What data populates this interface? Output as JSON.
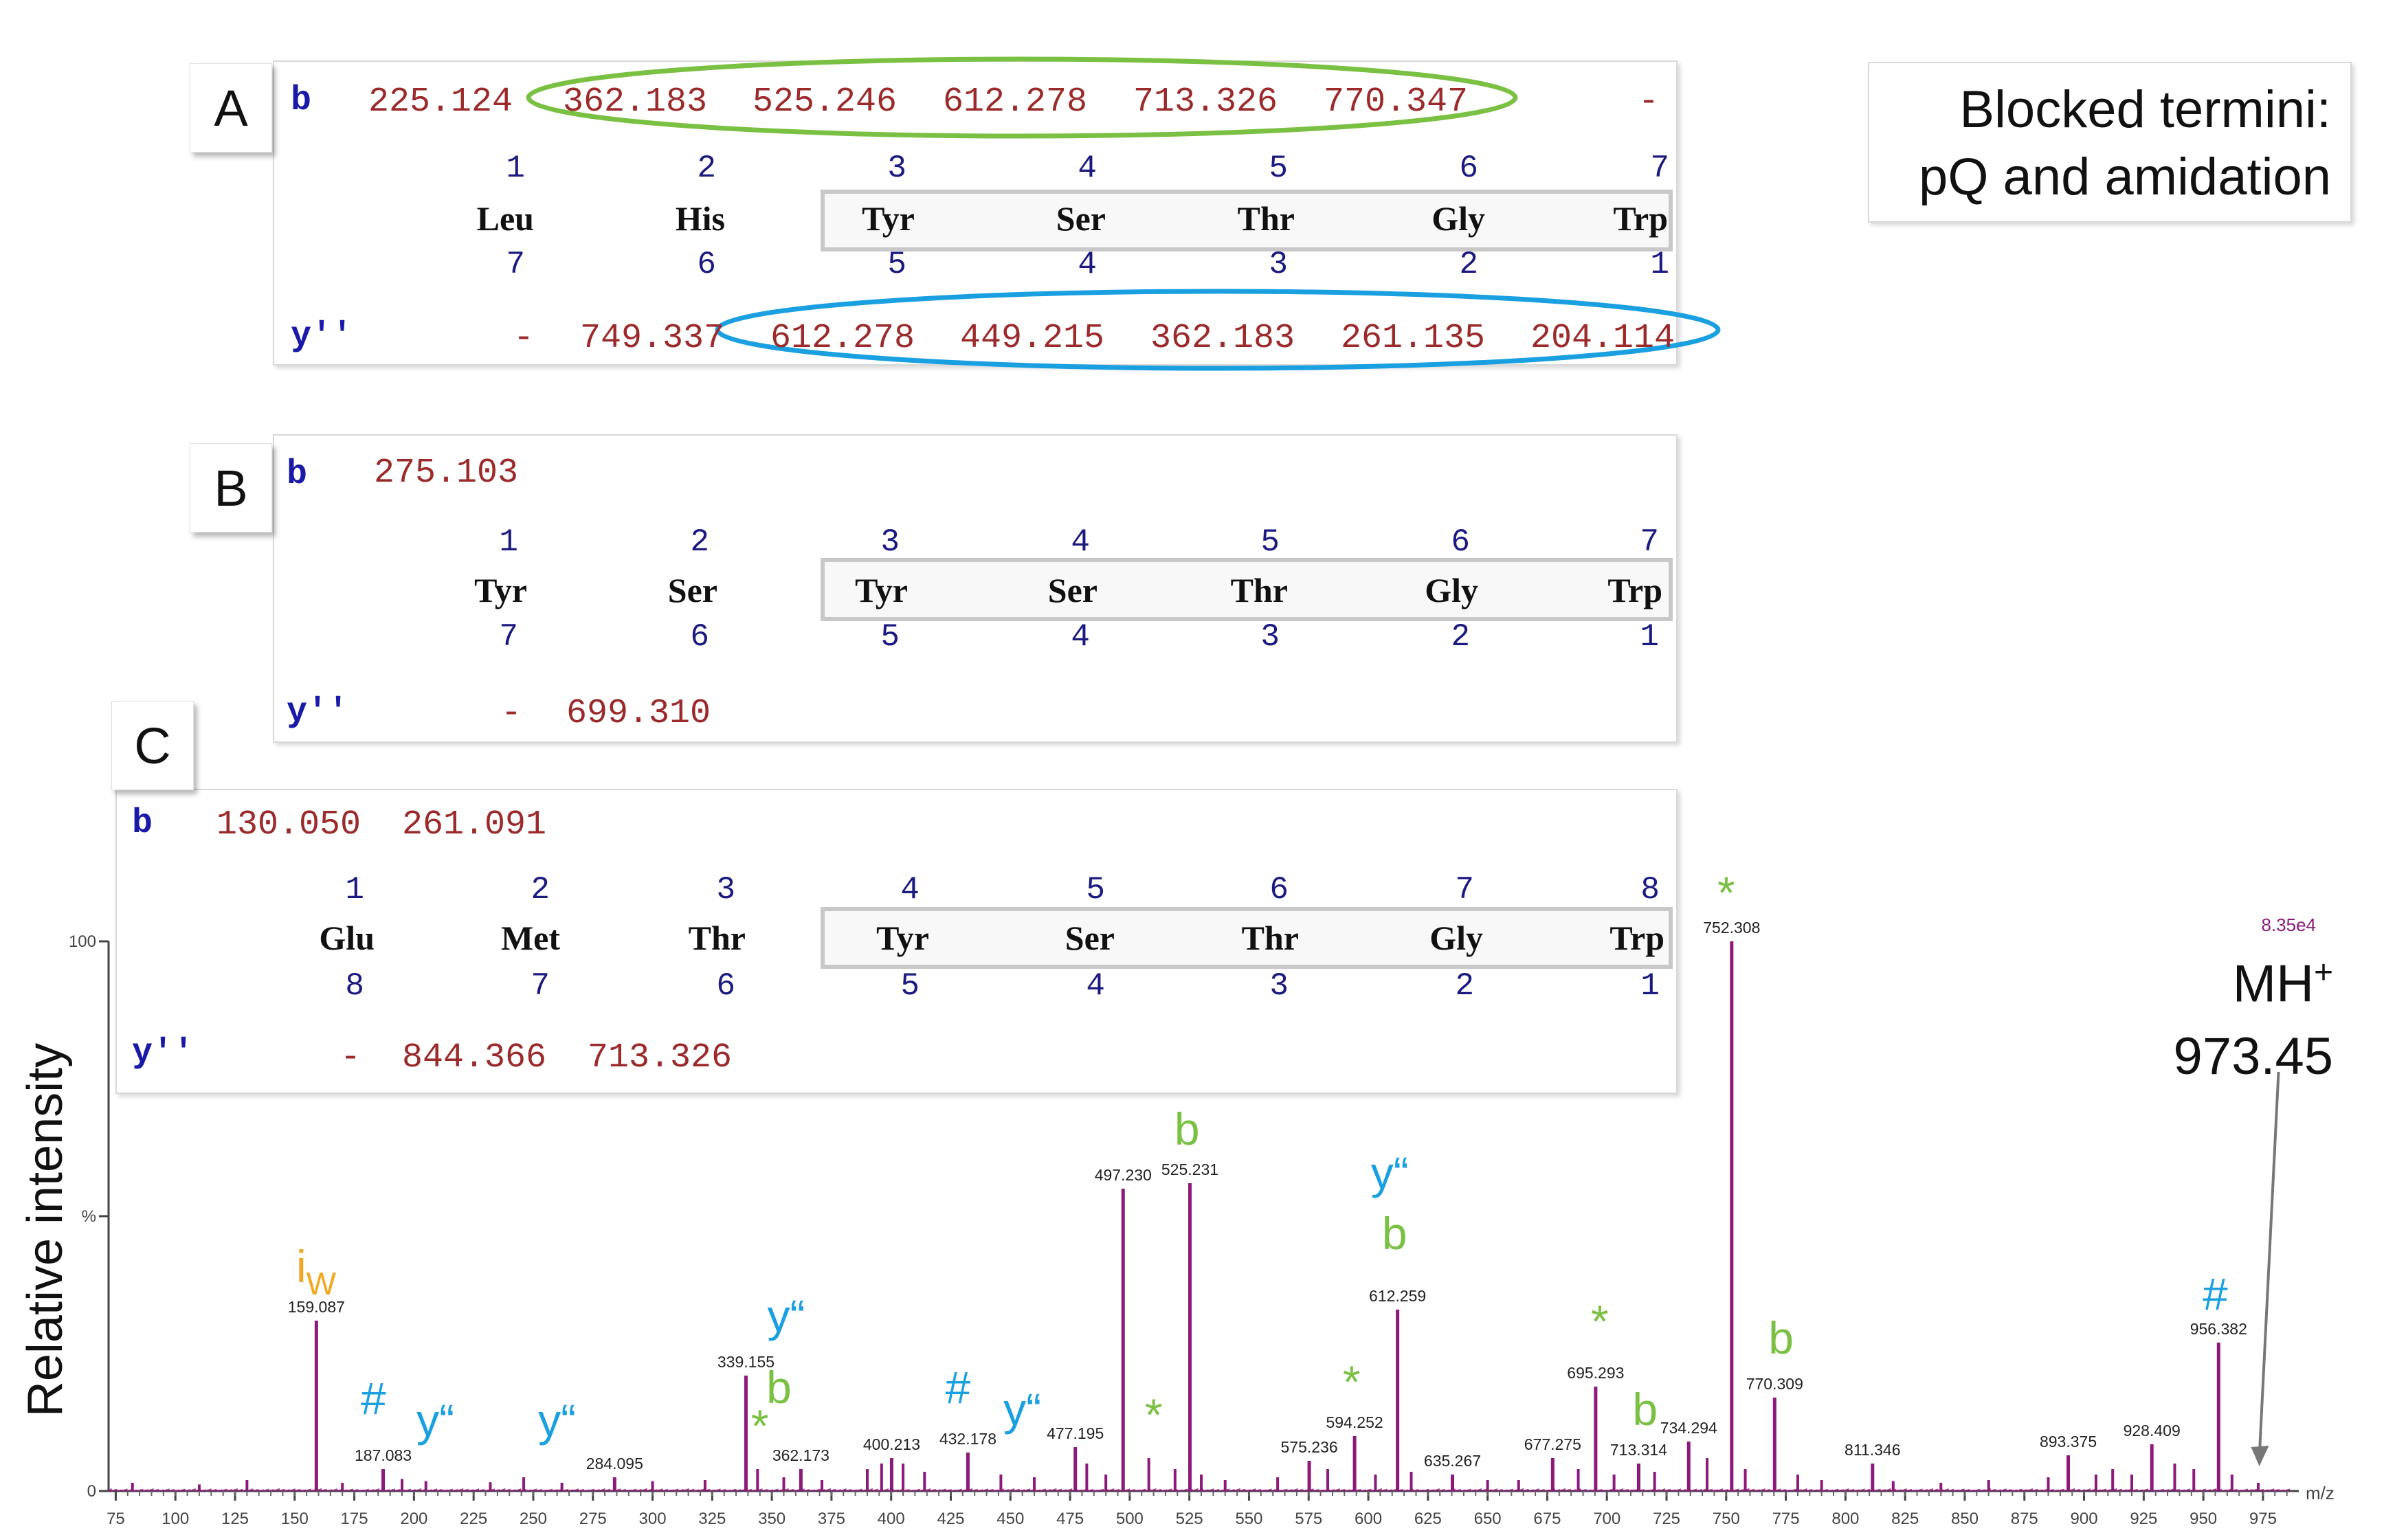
{
  "note": {
    "line1": "Blocked termini:",
    "line2": "pQ and amidation"
  },
  "panels": {
    "A": {
      "label": "A",
      "b_label": "b",
      "y_label": "y''",
      "b_values": [
        "225.124",
        "362.183",
        "525.246",
        "612.278",
        "713.326",
        "770.347",
        "-"
      ],
      "top_numbers": [
        "1",
        "2",
        "3",
        "4",
        "5",
        "6",
        "7"
      ],
      "residues": [
        "Leu",
        "His",
        "Tyr",
        "Ser",
        "Thr",
        "Gly",
        "Trp"
      ],
      "bottom_numbers": [
        "7",
        "6",
        "5",
        "4",
        "3",
        "2",
        "1"
      ],
      "y_values": [
        "-",
        "749.337",
        "612.278",
        "449.215",
        "362.183",
        "261.135",
        "204.114"
      ],
      "b_oval_color": "#7ac143",
      "y_oval_color": "#1aa0e0"
    },
    "B": {
      "label": "B",
      "b_label": "b",
      "y_label": "y''",
      "b_values": [
        "275.103"
      ],
      "top_numbers": [
        "1",
        "2",
        "3",
        "4",
        "5",
        "6",
        "7"
      ],
      "residues": [
        "Tyr",
        "Ser",
        "Tyr",
        "Ser",
        "Thr",
        "Gly",
        "Trp"
      ],
      "bottom_numbers": [
        "7",
        "6",
        "5",
        "4",
        "3",
        "2",
        "1"
      ],
      "y_values": [
        "-",
        "699.310"
      ]
    },
    "C": {
      "label": "C",
      "b_label": "b",
      "y_label": "y''",
      "b_values": [
        "130.050",
        "261.091"
      ],
      "top_numbers": [
        "1",
        "2",
        "3",
        "4",
        "5",
        "6",
        "7",
        "8"
      ],
      "residues": [
        "Glu",
        "Met",
        "Thr",
        "Tyr",
        "Ser",
        "Thr",
        "Gly",
        "Trp"
      ],
      "bottom_numbers": [
        "8",
        "7",
        "6",
        "5",
        "4",
        "3",
        "2",
        "1"
      ],
      "y_values": [
        "-",
        "844.366",
        "713.326"
      ]
    }
  },
  "chart_data": {
    "type": "line",
    "title": "",
    "xlabel": "m/z",
    "ylabel": "Relative intensity",
    "xlim": [
      65,
      990
    ],
    "ylim": [
      0,
      100
    ],
    "x_ticks": [
      75,
      100,
      125,
      150,
      175,
      200,
      225,
      250,
      275,
      300,
      325,
      350,
      375,
      400,
      425,
      450,
      475,
      500,
      525,
      550,
      575,
      600,
      625,
      650,
      675,
      700,
      725,
      750,
      775,
      800,
      825,
      850,
      875,
      900,
      925,
      950,
      975
    ],
    "y_ticks": [
      0,
      50,
      100
    ],
    "y_tick_labels": [
      "0",
      "%",
      "100"
    ],
    "max_intensity": "8.35e4",
    "spectrum_color": "#8b1a7a",
    "peaks": [
      {
        "mz": 159.087,
        "intensity": 31,
        "label": "159.087"
      },
      {
        "mz": 187.083,
        "intensity": 4,
        "label": "187.083"
      },
      {
        "mz": 284.095,
        "intensity": 2.5,
        "label": "284.095"
      },
      {
        "mz": 339.155,
        "intensity": 21,
        "label": "339.155"
      },
      {
        "mz": 362.173,
        "intensity": 4,
        "label": "362.173"
      },
      {
        "mz": 400.213,
        "intensity": 6,
        "label": "400.213"
      },
      {
        "mz": 432.178,
        "intensity": 7,
        "label": "432.178"
      },
      {
        "mz": 477.195,
        "intensity": 8,
        "label": "477.195"
      },
      {
        "mz": 497.23,
        "intensity": 55,
        "label": "497.230"
      },
      {
        "mz": 525.231,
        "intensity": 56,
        "label": "525.231"
      },
      {
        "mz": 575.236,
        "intensity": 5.5,
        "label": "575.236"
      },
      {
        "mz": 594.252,
        "intensity": 10,
        "label": "594.252"
      },
      {
        "mz": 612.259,
        "intensity": 33,
        "label": "612.259"
      },
      {
        "mz": 635.267,
        "intensity": 3,
        "label": "635.267"
      },
      {
        "mz": 677.275,
        "intensity": 6,
        "label": "677.275"
      },
      {
        "mz": 695.293,
        "intensity": 19,
        "label": "695.293"
      },
      {
        "mz": 713.314,
        "intensity": 5,
        "label": "713.314"
      },
      {
        "mz": 734.294,
        "intensity": 9,
        "label": "734.294"
      },
      {
        "mz": 752.308,
        "intensity": 100,
        "label": "752.308"
      },
      {
        "mz": 770.309,
        "intensity": 17,
        "label": "770.309"
      },
      {
        "mz": 811.346,
        "intensity": 5,
        "label": "811.346"
      },
      {
        "mz": 893.375,
        "intensity": 6.5,
        "label": "893.375"
      },
      {
        "mz": 928.409,
        "intensity": 8.5,
        "label": "928.409"
      },
      {
        "mz": 956.382,
        "intensity": 27,
        "label": "956.382"
      }
    ],
    "minor_peaks": [
      {
        "mz": 82,
        "intensity": 1.5
      },
      {
        "mz": 110,
        "intensity": 1.2
      },
      {
        "mz": 130,
        "intensity": 2
      },
      {
        "mz": 170,
        "intensity": 1.5
      },
      {
        "mz": 195,
        "intensity": 2.2
      },
      {
        "mz": 205,
        "intensity": 1.8
      },
      {
        "mz": 232,
        "intensity": 1.6
      },
      {
        "mz": 246,
        "intensity": 2.5
      },
      {
        "mz": 262,
        "intensity": 1.5
      },
      {
        "mz": 300,
        "intensity": 1.8
      },
      {
        "mz": 322,
        "intensity": 2
      },
      {
        "mz": 344,
        "intensity": 4
      },
      {
        "mz": 355,
        "intensity": 2.5
      },
      {
        "mz": 371,
        "intensity": 2
      },
      {
        "mz": 390,
        "intensity": 4
      },
      {
        "mz": 396,
        "intensity": 5
      },
      {
        "mz": 405,
        "intensity": 5
      },
      {
        "mz": 414,
        "intensity": 3.5
      },
      {
        "mz": 446,
        "intensity": 3
      },
      {
        "mz": 460,
        "intensity": 2.5
      },
      {
        "mz": 482,
        "intensity": 5
      },
      {
        "mz": 490,
        "intensity": 3
      },
      {
        "mz": 508,
        "intensity": 6
      },
      {
        "mz": 519,
        "intensity": 4
      },
      {
        "mz": 530,
        "intensity": 3
      },
      {
        "mz": 540,
        "intensity": 2
      },
      {
        "mz": 562,
        "intensity": 2.5
      },
      {
        "mz": 583,
        "intensity": 4
      },
      {
        "mz": 603,
        "intensity": 3
      },
      {
        "mz": 618,
        "intensity": 3.5
      },
      {
        "mz": 650,
        "intensity": 2
      },
      {
        "mz": 663,
        "intensity": 2
      },
      {
        "mz": 688,
        "intensity": 4
      },
      {
        "mz": 703,
        "intensity": 3
      },
      {
        "mz": 720,
        "intensity": 3.5
      },
      {
        "mz": 742,
        "intensity": 6
      },
      {
        "mz": 758,
        "intensity": 4
      },
      {
        "mz": 780,
        "intensity": 3
      },
      {
        "mz": 790,
        "intensity": 2
      },
      {
        "mz": 820,
        "intensity": 1.8
      },
      {
        "mz": 840,
        "intensity": 1.5
      },
      {
        "mz": 860,
        "intensity": 2
      },
      {
        "mz": 885,
        "intensity": 2.5
      },
      {
        "mz": 905,
        "intensity": 3
      },
      {
        "mz": 912,
        "intensity": 4
      },
      {
        "mz": 920,
        "intensity": 3
      },
      {
        "mz": 938,
        "intensity": 5
      },
      {
        "mz": 946,
        "intensity": 4
      },
      {
        "mz": 962,
        "intensity": 3
      },
      {
        "mz": 973,
        "intensity": 1.5
      }
    ],
    "annotations": [
      {
        "text": "i",
        "sub": "W",
        "color": "#f0a820",
        "mz": 159,
        "level": 38
      },
      {
        "text": "#",
        "color": "#1aa0e0",
        "mz": 183,
        "level": 14
      },
      {
        "text": "y“",
        "color": "#1aa0e0",
        "mz": 209,
        "level": 10
      },
      {
        "text": "y“",
        "color": "#1aa0e0",
        "mz": 260,
        "level": 10
      },
      {
        "text": "y“",
        "color": "#1aa0e0",
        "mz": 356,
        "level": 29
      },
      {
        "text": "b",
        "color": "#7ac143",
        "mz": 353,
        "level": 16
      },
      {
        "text": "*",
        "color": "#7ac143",
        "mz": 345,
        "level": 9
      },
      {
        "text": "#",
        "color": "#1aa0e0",
        "mz": 428,
        "level": 16
      },
      {
        "text": "y“",
        "color": "#1aa0e0",
        "mz": 455,
        "level": 12
      },
      {
        "text": "*",
        "color": "#7ac143",
        "mz": 510,
        "level": 11
      },
      {
        "text": "b",
        "color": "#7ac143",
        "mz": 524,
        "level": 63
      },
      {
        "text": "y“",
        "color": "#1aa0e0",
        "mz": 609,
        "level": 55
      },
      {
        "text": "b",
        "color": "#7ac143",
        "mz": 611,
        "level": 44
      },
      {
        "text": "*",
        "color": "#7ac143",
        "mz": 593,
        "level": 17
      },
      {
        "text": "*",
        "color": "#7ac143",
        "mz": 697,
        "level": 28
      },
      {
        "text": "b",
        "color": "#7ac143",
        "mz": 716,
        "level": 12
      },
      {
        "text": "*",
        "color": "#7ac143",
        "mz": 750,
        "level": 106
      },
      {
        "text": "b",
        "color": "#7ac143",
        "mz": 773,
        "level": 25
      },
      {
        "text": "#",
        "color": "#1aa0e0",
        "mz": 955,
        "level": 33
      }
    ],
    "precursor": {
      "label": "MH",
      "sup": "+",
      "mz_text": "973.45",
      "mz": 973.45
    }
  }
}
